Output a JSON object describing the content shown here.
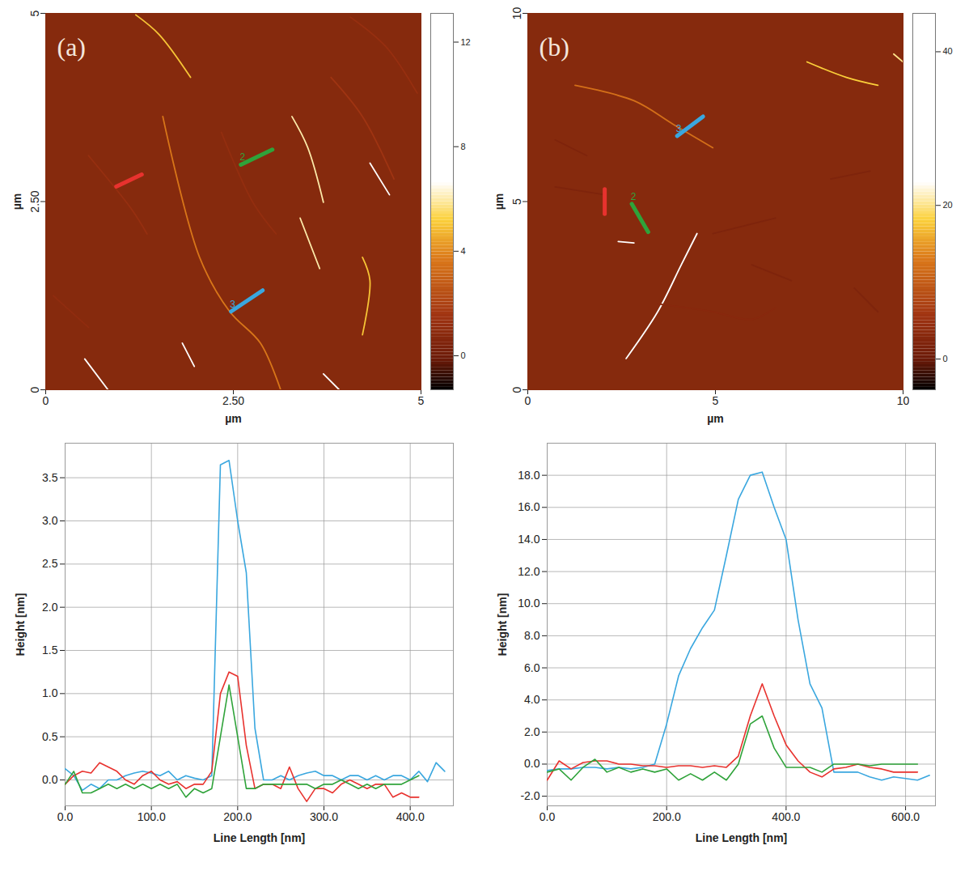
{
  "chart_data": [
    {
      "type": "image",
      "title": "(a)",
      "xlabel": "µm",
      "ylabel": "µm",
      "xlim": [
        0,
        5
      ],
      "ylim": [
        0,
        5
      ],
      "xticks": [
        0,
        {
          "value": 2.5,
          "label": "2.50"
        },
        5
      ],
      "yticks": [
        0,
        {
          "value": 2.5,
          "label": "2.50"
        },
        5
      ],
      "colorbar": {
        "range": [
          -1.3,
          13.1
        ],
        "ticks": [
          0,
          4,
          8,
          12
        ]
      },
      "fibrils": [
        {
          "points": [
            [
              1.56,
              3.63
            ],
            [
              2.05,
              1.76
            ],
            [
              2.45,
              1.04
            ],
            [
              2.86,
              0.62
            ],
            [
              3.13,
              0.0
            ]
          ],
          "height": 3.6
        },
        {
          "points": [
            [
              0.52,
              0.41
            ],
            [
              0.83,
              0.0
            ]
          ],
          "height": 8
        },
        {
          "points": [
            [
              0.57,
              3.11
            ],
            [
              1.15,
              2.39
            ],
            [
              1.35,
              2.07
            ]
          ],
          "height": 1.2
        },
        {
          "points": [
            [
              1.2,
              4.98
            ],
            [
              1.51,
              4.72
            ],
            [
              1.93,
              4.15
            ]
          ],
          "height": 5
        },
        {
          "points": [
            [
              2.34,
              3.42
            ],
            [
              2.76,
              2.49
            ],
            [
              3.07,
              2.07
            ]
          ],
          "height": 1.1
        },
        {
          "points": [
            [
              3.28,
              3.63
            ],
            [
              3.49,
              3.22
            ],
            [
              3.7,
              2.49
            ]
          ],
          "height": 6
        },
        {
          "points": [
            [
              3.39,
              2.28
            ],
            [
              3.65,
              1.61
            ]
          ],
          "height": 6
        },
        {
          "points": [
            [
              3.8,
              4.15
            ],
            [
              4.22,
              3.63
            ],
            [
              4.64,
              2.8
            ]
          ],
          "height": 1.5
        },
        {
          "points": [
            [
              4.32,
              3.01
            ],
            [
              4.58,
              2.59
            ]
          ],
          "height": 9
        },
        {
          "points": [
            [
              4.22,
              1.76
            ],
            [
              4.32,
              1.45
            ],
            [
              4.22,
              0.73
            ]
          ],
          "height": 5
        },
        {
          "points": [
            [
              1.82,
              0.62
            ],
            [
              1.98,
              0.31
            ]
          ],
          "height": 7
        },
        {
          "points": [
            [
              4.06,
              4.95
            ],
            [
              4.53,
              4.56
            ],
            [
              4.95,
              3.94
            ]
          ],
          "height": 1.2
        },
        {
          "points": [
            [
              0.1,
              1.25
            ],
            [
              0.57,
              0.83
            ]
          ],
          "height": 1
        },
        {
          "points": [
            [
              3.7,
              0.21
            ],
            [
              3.91,
              0.0
            ]
          ],
          "height": 7
        }
      ],
      "profiles": [
        {
          "color": "#e8322e",
          "from": [
            0.94,
            2.7
          ],
          "to": [
            1.28,
            2.86
          ]
        },
        {
          "color": "#2fa33a",
          "label": "2",
          "from": [
            2.6,
            2.99
          ],
          "to": [
            3.02,
            3.19
          ]
        },
        {
          "color": "#3aa7df",
          "label": "3",
          "from": [
            2.47,
            1.04
          ],
          "to": [
            2.89,
            1.32
          ]
        }
      ]
    },
    {
      "type": "image",
      "title": "(b)",
      "xlabel": "µm",
      "ylabel": "µm",
      "xlim": [
        0,
        10
      ],
      "ylim": [
        0,
        10
      ],
      "xticks": [
        0,
        5,
        10
      ],
      "yticks": [
        0,
        5,
        10
      ],
      "colorbar": {
        "range": [
          -4,
          45
        ],
        "ticks": [
          0,
          20,
          40
        ]
      },
      "fibrils": [
        {
          "points": [
            [
              1.26,
              8.09
            ],
            [
              2.83,
              7.68
            ],
            [
              3.88,
              7.05
            ],
            [
              4.93,
              6.43
            ]
          ],
          "height": 12
        },
        {
          "points": [
            [
              7.44,
              8.71
            ],
            [
              8.49,
              8.3
            ],
            [
              9.33,
              8.09
            ]
          ],
          "height": 18
        },
        {
          "points": [
            [
              9.75,
              8.92
            ],
            [
              10.0,
              8.71
            ]
          ],
          "height": 20
        },
        {
          "points": [
            [
              2.62,
              0.83
            ],
            [
              3.46,
              2.07
            ],
            [
              4.09,
              3.32
            ],
            [
              4.51,
              4.15
            ]
          ],
          "height": 30
        },
        {
          "points": [
            [
              3.46,
              2.28
            ],
            [
              4.93,
              2.07
            ],
            [
              5.97,
              1.87
            ],
            [
              6.6,
              2.18
            ]
          ],
          "height": 3
        },
        {
          "points": [
            [
              2.41,
              3.94
            ],
            [
              2.83,
              3.9
            ]
          ],
          "height": 25
        },
        {
          "points": [
            [
              0.73,
              5.39
            ],
            [
              1.99,
              5.19
            ]
          ],
          "height": 2
        },
        {
          "points": [
            [
              4.93,
              4.15
            ],
            [
              6.6,
              4.56
            ]
          ],
          "height": 2
        },
        {
          "points": [
            [
              8.07,
              5.6
            ],
            [
              9.12,
              5.81
            ]
          ],
          "height": 2
        },
        {
          "points": [
            [
              0.73,
              6.64
            ],
            [
              1.57,
              6.22
            ]
          ],
          "height": 2
        },
        {
          "points": [
            [
              5.97,
              3.32
            ],
            [
              7.02,
              2.9
            ]
          ],
          "height": 2
        },
        {
          "points": [
            [
              8.7,
              2.7
            ],
            [
              9.33,
              2.07
            ]
          ],
          "height": 2
        }
      ],
      "profiles": [
        {
          "color": "#e8322e",
          "from": [
            2.05,
            5.33
          ],
          "to": [
            2.05,
            4.67
          ]
        },
        {
          "color": "#2fa33a",
          "label": "2",
          "from": [
            2.77,
            4.94
          ],
          "to": [
            3.21,
            4.19
          ]
        },
        {
          "color": "#3aa7df",
          "label": "3",
          "from": [
            3.98,
            6.74
          ],
          "to": [
            4.67,
            7.26
          ]
        }
      ]
    },
    {
      "type": "line",
      "xlabel": "Line Length [nm]",
      "ylabel": "Height [nm]",
      "grid": true,
      "xlim": [
        0,
        450
      ],
      "ylim": [
        -0.3,
        3.9
      ],
      "xticks": [
        {
          "value": 0,
          "label": "0.0"
        },
        {
          "value": 100,
          "label": "100.0"
        },
        {
          "value": 200,
          "label": "200.0"
        },
        {
          "value": 300,
          "label": "300.0"
        },
        {
          "value": 400,
          "label": "400.0"
        }
      ],
      "yticks": [
        {
          "value": 0,
          "label": "0.0"
        },
        {
          "value": 0.5,
          "label": "0.5"
        },
        {
          "value": 1,
          "label": "1.0"
        },
        {
          "value": 1.5,
          "label": "1.5"
        },
        {
          "value": 2,
          "label": "2.0"
        },
        {
          "value": 2.5,
          "label": "2.5"
        },
        {
          "value": 3,
          "label": "3.0"
        },
        {
          "value": 3.5,
          "label": "3.5"
        }
      ],
      "x": [
        0,
        10,
        20,
        30,
        40,
        50,
        60,
        70,
        80,
        90,
        100,
        110,
        120,
        130,
        140,
        150,
        160,
        170,
        180,
        190,
        200,
        210,
        220,
        230,
        240,
        250,
        260,
        270,
        280,
        290,
        300,
        310,
        320,
        330,
        340,
        350,
        360,
        370,
        380,
        390,
        400,
        410,
        420,
        430,
        440
      ],
      "series": [
        {
          "color": "#3aa7df",
          "values": [
            0.13,
            0.05,
            -0.12,
            -0.05,
            -0.1,
            0.0,
            0.0,
            0.05,
            0.08,
            0.1,
            0.08,
            0.05,
            0.1,
            0.0,
            0.05,
            0.02,
            0.0,
            0.05,
            3.65,
            3.7,
            3.0,
            2.4,
            0.6,
            0.0,
            0.0,
            0.05,
            0.0,
            0.05,
            0.08,
            0.1,
            0.05,
            0.05,
            0.0,
            0.05,
            0.05,
            0.0,
            0.05,
            0.0,
            0.05,
            0.05,
            0.0,
            0.1,
            -0.02,
            0.2,
            0.1
          ]
        },
        {
          "color": "#e8322e",
          "values": [
            -0.05,
            0.05,
            0.1,
            0.08,
            0.2,
            0.15,
            0.1,
            0.0,
            -0.05,
            0.05,
            0.1,
            0.0,
            -0.05,
            -0.02,
            -0.1,
            -0.05,
            -0.05,
            0.1,
            1.0,
            1.25,
            1.2,
            0.4,
            -0.1,
            -0.05,
            -0.05,
            -0.1,
            0.15,
            -0.1,
            -0.25,
            -0.1,
            -0.1,
            -0.15,
            -0.05,
            0.0,
            -0.05,
            -0.1,
            -0.05,
            -0.05,
            -0.2,
            -0.15,
            -0.2,
            -0.2,
            null,
            null,
            null
          ]
        },
        {
          "color": "#2fa33a",
          "values": [
            -0.05,
            0.1,
            -0.15,
            -0.15,
            -0.1,
            -0.05,
            -0.1,
            -0.05,
            -0.1,
            -0.05,
            -0.1,
            -0.05,
            -0.1,
            -0.05,
            -0.2,
            -0.1,
            -0.15,
            -0.1,
            0.5,
            1.1,
            0.5,
            -0.1,
            -0.1,
            -0.05,
            -0.05,
            -0.05,
            -0.05,
            -0.05,
            -0.05,
            -0.1,
            -0.05,
            -0.05,
            0.0,
            -0.05,
            -0.1,
            -0.05,
            -0.1,
            -0.05,
            -0.05,
            -0.05,
            0.0,
            0.05,
            null,
            null,
            null
          ]
        }
      ]
    },
    {
      "type": "line",
      "xlabel": "Line Length [nm]",
      "ylabel": "Height [nm]",
      "grid": true,
      "xlim": [
        0,
        650
      ],
      "ylim": [
        -2.6,
        20
      ],
      "xticks": [
        {
          "value": 0,
          "label": "0.0"
        },
        {
          "value": 200,
          "label": "200.0"
        },
        {
          "value": 400,
          "label": "400.0"
        },
        {
          "value": 600,
          "label": "600.0"
        }
      ],
      "yticks": [
        {
          "value": -2,
          "label": "-2.0"
        },
        {
          "value": 0,
          "label": "0.0"
        },
        {
          "value": 2,
          "label": "2.0"
        },
        {
          "value": 4,
          "label": "4.0"
        },
        {
          "value": 6,
          "label": "6.0"
        },
        {
          "value": 8,
          "label": "8.0"
        },
        {
          "value": 10,
          "label": "10.0"
        },
        {
          "value": 12,
          "label": "12.0"
        },
        {
          "value": 14,
          "label": "14.0"
        },
        {
          "value": 16,
          "label": "16.0"
        },
        {
          "value": 18,
          "label": "18.0"
        }
      ],
      "x": [
        0,
        20,
        40,
        60,
        80,
        100,
        120,
        140,
        160,
        180,
        200,
        220,
        240,
        260,
        280,
        300,
        320,
        340,
        360,
        380,
        400,
        420,
        440,
        460,
        480,
        500,
        520,
        540,
        560,
        580,
        600,
        620,
        640
      ],
      "series": [
        {
          "color": "#3aa7df",
          "values": [
            -0.4,
            -0.3,
            -0.3,
            -0.2,
            -0.2,
            -0.3,
            -0.2,
            -0.3,
            -0.2,
            0.0,
            2.5,
            5.5,
            7.2,
            8.5,
            9.6,
            13.0,
            16.5,
            18.0,
            18.2,
            16.0,
            14.0,
            9.0,
            5.0,
            3.5,
            -0.5,
            -0.5,
            -0.5,
            -0.8,
            -1.0,
            -0.8,
            -0.9,
            -1.0,
            -0.7
          ]
        },
        {
          "color": "#e8322e",
          "values": [
            -1.0,
            0.2,
            -0.3,
            0.1,
            0.2,
            0.2,
            0.0,
            0.0,
            -0.1,
            -0.1,
            -0.2,
            -0.1,
            -0.1,
            -0.2,
            -0.1,
            -0.2,
            0.5,
            3.0,
            5.0,
            3.0,
            1.2,
            0.2,
            -0.5,
            -0.8,
            -0.3,
            -0.2,
            0.0,
            -0.2,
            -0.3,
            -0.5,
            -0.5,
            -0.5,
            null
          ]
        },
        {
          "color": "#2fa33a",
          "values": [
            -0.5,
            -0.3,
            -1.0,
            -0.2,
            0.3,
            -0.5,
            -0.2,
            -0.5,
            -0.3,
            -0.5,
            -0.3,
            -1.0,
            -0.6,
            -1.0,
            -0.5,
            -1.0,
            0.0,
            2.5,
            3.0,
            1.0,
            -0.2,
            -0.2,
            -0.2,
            -0.5,
            0.0,
            0.0,
            0.0,
            -0.1,
            0.0,
            0.0,
            0.0,
            0.0,
            null
          ]
        }
      ]
    }
  ]
}
